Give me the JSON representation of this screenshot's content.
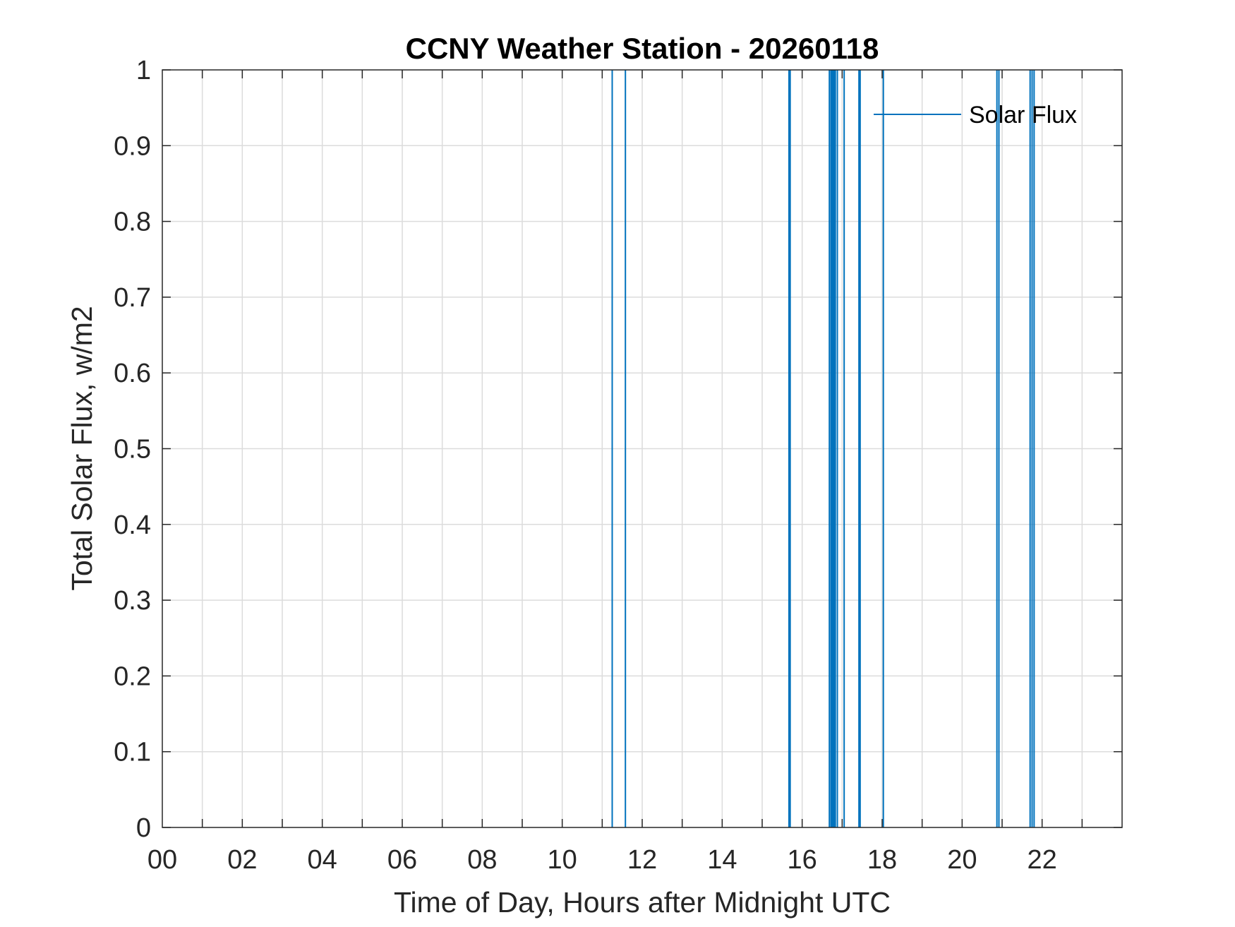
{
  "chart_data": {
    "type": "line",
    "title": "CCNY Weather Station - 20260118",
    "xlabel": "Time of Day, Hours after Midnight UTC",
    "ylabel": "Total Solar Flux, w/m2",
    "xlim": [
      0,
      24
    ],
    "ylim": [
      0,
      1
    ],
    "grid": true,
    "x_tick_values": [
      0,
      2,
      4,
      6,
      8,
      10,
      12,
      14,
      16,
      18,
      20,
      22
    ],
    "x_tick_labels": [
      "00",
      "02",
      "04",
      "06",
      "08",
      "10",
      "12",
      "14",
      "16",
      "18",
      "20",
      "22"
    ],
    "y_tick_values": [
      0,
      0.1,
      0.2,
      0.3,
      0.4,
      0.5,
      0.6,
      0.7,
      0.8,
      0.9,
      1
    ],
    "y_tick_labels": [
      "0",
      "0.1",
      "0.2",
      "0.3",
      "0.4",
      "0.5",
      "0.6",
      "0.7",
      "0.8",
      "0.9",
      "1"
    ],
    "legend": {
      "label": "Solar Flux",
      "location": "top-right"
    },
    "series": [
      {
        "name": "Solar Flux",
        "color": "#0072BD",
        "spike_hours": [
          11.25,
          11.58,
          15.67,
          15.7,
          16.68,
          16.72,
          16.75,
          16.78,
          16.8,
          16.83,
          16.88,
          17.05,
          17.42,
          17.45,
          18.03,
          20.87,
          20.92,
          21.7,
          21.75,
          21.8
        ]
      }
    ]
  }
}
